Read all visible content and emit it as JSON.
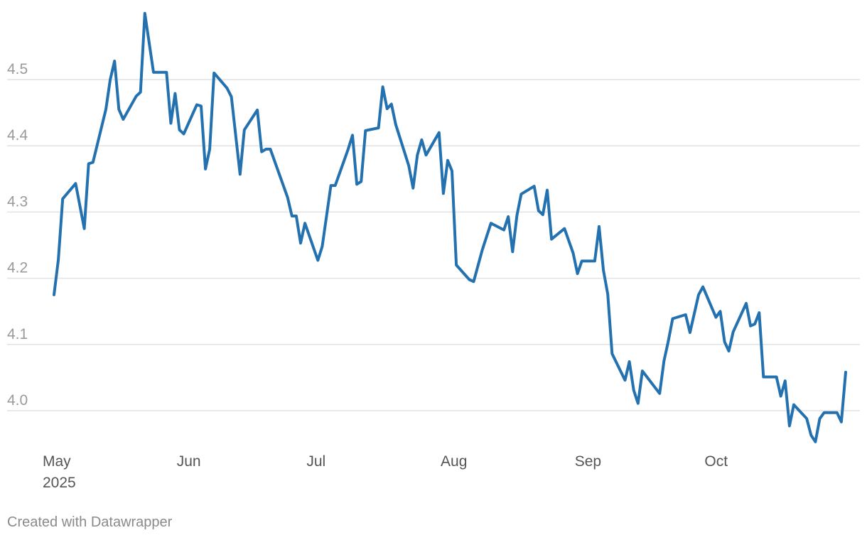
{
  "chart_data": {
    "type": "line",
    "xlabel": "",
    "ylabel": "",
    "ylim": [
      3.95,
      4.6
    ],
    "y_ticks": [
      "4.0",
      "4.1",
      "4.2",
      "4.3",
      "4.4",
      "4.5"
    ],
    "x_ticks": [
      {
        "date": "2025-05-01",
        "label": "May",
        "sublabel": "2025"
      },
      {
        "date": "2025-06-01",
        "label": "Jun"
      },
      {
        "date": "2025-07-01",
        "label": "Jul"
      },
      {
        "date": "2025-08-01",
        "label": "Aug"
      },
      {
        "date": "2025-09-01",
        "label": "Sep"
      },
      {
        "date": "2025-10-01",
        "label": "Oct"
      }
    ],
    "grid": true,
    "line_color": "#2471b0",
    "grid_color": "#e2e2e2",
    "series": [
      {
        "points": [
          [
            "2025-05-01",
            4.175
          ],
          [
            "2025-05-02",
            4.228
          ],
          [
            "2025-05-03",
            4.32
          ],
          [
            "2025-05-06",
            4.343
          ],
          [
            "2025-05-08",
            4.275
          ],
          [
            "2025-05-09",
            4.373
          ],
          [
            "2025-05-10",
            4.375
          ],
          [
            "2025-05-13",
            4.455
          ],
          [
            "2025-05-14",
            4.5
          ],
          [
            "2025-05-15",
            4.528
          ],
          [
            "2025-05-16",
            4.455
          ],
          [
            "2025-05-17",
            4.44
          ],
          [
            "2025-05-20",
            4.475
          ],
          [
            "2025-05-21",
            4.481
          ],
          [
            "2025-05-22",
            4.6
          ],
          [
            "2025-05-24",
            4.511
          ],
          [
            "2025-05-27",
            4.511
          ],
          [
            "2025-05-28",
            4.434
          ],
          [
            "2025-05-29",
            4.479
          ],
          [
            "2025-05-30",
            4.424
          ],
          [
            "2025-05-31",
            4.418
          ],
          [
            "2025-06-03",
            4.462
          ],
          [
            "2025-06-04",
            4.46
          ],
          [
            "2025-06-05",
            4.365
          ],
          [
            "2025-06-06",
            4.395
          ],
          [
            "2025-06-07",
            4.51
          ],
          [
            "2025-06-10",
            4.487
          ],
          [
            "2025-06-11",
            4.474
          ],
          [
            "2025-06-13",
            4.357
          ],
          [
            "2025-06-14",
            4.424
          ],
          [
            "2025-06-17",
            4.454
          ],
          [
            "2025-06-18",
            4.391
          ],
          [
            "2025-06-19",
            4.395
          ],
          [
            "2025-06-20",
            4.395
          ],
          [
            "2025-06-24",
            4.322
          ],
          [
            "2025-06-25",
            4.294
          ],
          [
            "2025-06-26",
            4.294
          ],
          [
            "2025-06-27",
            4.253
          ],
          [
            "2025-06-28",
            4.283
          ],
          [
            "2025-07-01",
            4.227
          ],
          [
            "2025-07-02",
            4.248
          ],
          [
            "2025-07-04",
            4.34
          ],
          [
            "2025-07-05",
            4.34
          ],
          [
            "2025-07-08",
            4.395
          ],
          [
            "2025-07-09",
            4.416
          ],
          [
            "2025-07-10",
            4.342
          ],
          [
            "2025-07-11",
            4.346
          ],
          [
            "2025-07-12",
            4.423
          ],
          [
            "2025-07-15",
            4.427
          ],
          [
            "2025-07-16",
            4.489
          ],
          [
            "2025-07-17",
            4.456
          ],
          [
            "2025-07-18",
            4.463
          ],
          [
            "2025-07-19",
            4.432
          ],
          [
            "2025-07-22",
            4.37
          ],
          [
            "2025-07-23",
            4.336
          ],
          [
            "2025-07-24",
            4.386
          ],
          [
            "2025-07-25",
            4.409
          ],
          [
            "2025-07-26",
            4.386
          ],
          [
            "2025-07-29",
            4.42
          ],
          [
            "2025-07-30",
            4.328
          ],
          [
            "2025-07-31",
            4.378
          ],
          [
            "2025-08-01",
            4.362
          ],
          [
            "2025-08-02",
            4.22
          ],
          [
            "2025-08-05",
            4.198
          ],
          [
            "2025-08-06",
            4.195
          ],
          [
            "2025-08-08",
            4.243
          ],
          [
            "2025-08-10",
            4.283
          ],
          [
            "2025-08-13",
            4.273
          ],
          [
            "2025-08-14",
            4.293
          ],
          [
            "2025-08-15",
            4.24
          ],
          [
            "2025-08-16",
            4.295
          ],
          [
            "2025-08-17",
            4.327
          ],
          [
            "2025-08-20",
            4.339
          ],
          [
            "2025-08-21",
            4.302
          ],
          [
            "2025-08-22",
            4.296
          ],
          [
            "2025-08-23",
            4.333
          ],
          [
            "2025-08-24",
            4.259
          ],
          [
            "2025-08-27",
            4.275
          ],
          [
            "2025-08-29",
            4.238
          ],
          [
            "2025-08-30",
            4.207
          ],
          [
            "2025-08-31",
            4.226
          ],
          [
            "2025-09-03",
            4.226
          ],
          [
            "2025-09-04",
            4.278
          ],
          [
            "2025-09-05",
            4.212
          ],
          [
            "2025-09-06",
            4.176
          ],
          [
            "2025-09-07",
            4.086
          ],
          [
            "2025-09-10",
            4.046
          ],
          [
            "2025-09-11",
            4.074
          ],
          [
            "2025-09-12",
            4.031
          ],
          [
            "2025-09-13",
            4.011
          ],
          [
            "2025-09-14",
            4.06
          ],
          [
            "2025-09-18",
            4.026
          ],
          [
            "2025-09-19",
            4.075
          ],
          [
            "2025-09-20",
            4.105
          ],
          [
            "2025-09-21",
            4.139
          ],
          [
            "2025-09-24",
            4.145
          ],
          [
            "2025-09-25",
            4.118
          ],
          [
            "2025-09-27",
            4.175
          ],
          [
            "2025-09-28",
            4.187
          ],
          [
            "2025-10-01",
            4.141
          ],
          [
            "2025-10-02",
            4.15
          ],
          [
            "2025-10-03",
            4.104
          ],
          [
            "2025-10-04",
            4.09
          ],
          [
            "2025-10-05",
            4.119
          ],
          [
            "2025-10-08",
            4.162
          ],
          [
            "2025-10-09",
            4.128
          ],
          [
            "2025-10-10",
            4.131
          ],
          [
            "2025-10-11",
            4.148
          ],
          [
            "2025-10-12",
            4.051
          ],
          [
            "2025-10-15",
            4.051
          ],
          [
            "2025-10-16",
            4.022
          ],
          [
            "2025-10-17",
            4.045
          ],
          [
            "2025-10-18",
            3.977
          ],
          [
            "2025-10-19",
            4.009
          ],
          [
            "2025-10-22",
            3.988
          ],
          [
            "2025-10-23",
            3.963
          ],
          [
            "2025-10-24",
            3.953
          ],
          [
            "2025-10-25",
            3.988
          ],
          [
            "2025-10-26",
            3.997
          ],
          [
            "2025-10-29",
            3.997
          ],
          [
            "2025-10-30",
            3.983
          ],
          [
            "2025-10-31",
            4.058
          ]
        ]
      }
    ]
  },
  "footer": {
    "credit": "Created with Datawrapper"
  }
}
